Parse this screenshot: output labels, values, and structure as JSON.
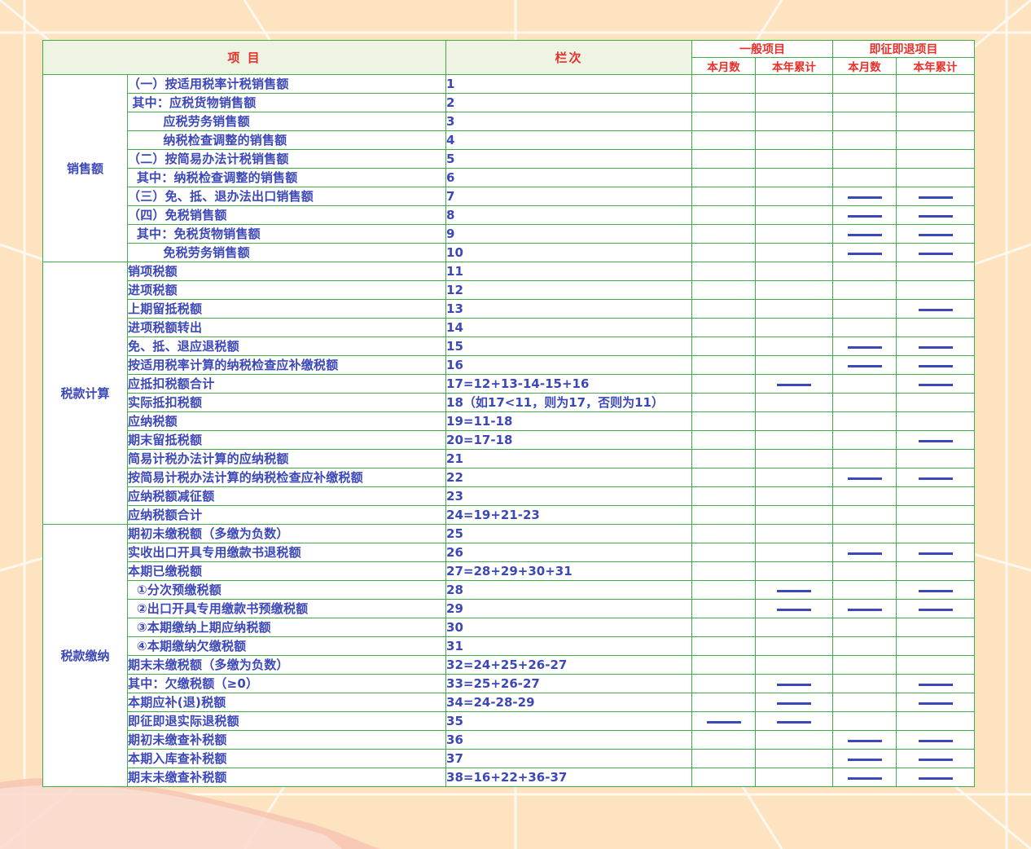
{
  "headers": {
    "item": "项 目",
    "seq": "栏次",
    "general": "一般项目",
    "refund": "即征即退项目",
    "month": "本月数",
    "year": "本年累计"
  },
  "colors": {
    "accent": "#e8302a",
    "text": "#3c48b8",
    "border": "#3fae48",
    "background": "#fde3c0"
  },
  "sections": [
    {
      "label": "销售额",
      "rows": [
        {
          "item": "（一）按适用税率计税销售额",
          "seq": "1",
          "dash": [
            false,
            false,
            false,
            false
          ]
        },
        {
          "item": " 其中：应税货物销售额",
          "seq": "2",
          "dash": [
            false,
            false,
            false,
            false
          ]
        },
        {
          "item": "        应税劳务销售额",
          "seq": "3",
          "dash": [
            false,
            false,
            false,
            false
          ]
        },
        {
          "item": "        纳税检查调整的销售额",
          "seq": "4",
          "dash": [
            false,
            false,
            false,
            false
          ]
        },
        {
          "item": "（二）按简易办法计税销售额",
          "seq": "5",
          "dash": [
            false,
            false,
            false,
            false
          ]
        },
        {
          "item": "  其中：纳税检查调整的销售额",
          "seq": "6",
          "dash": [
            false,
            false,
            false,
            false
          ]
        },
        {
          "item": "（三）免、抵、退办法出口销售额",
          "seq": "7",
          "dash": [
            false,
            false,
            true,
            true
          ]
        },
        {
          "item": "（四）免税销售额",
          "seq": "8",
          "dash": [
            false,
            false,
            true,
            true
          ]
        },
        {
          "item": "  其中：免税货物销售额",
          "seq": "9",
          "dash": [
            false,
            false,
            true,
            true
          ]
        },
        {
          "item": "        免税劳务销售额",
          "seq": "10",
          "dash": [
            false,
            false,
            true,
            true
          ]
        }
      ]
    },
    {
      "label": "税款计算",
      "rows": [
        {
          "item": "销项税额",
          "seq": "11",
          "dash": [
            false,
            false,
            false,
            false
          ]
        },
        {
          "item": "进项税额",
          "seq": "12",
          "dash": [
            false,
            false,
            false,
            false
          ]
        },
        {
          "item": "上期留抵税额",
          "seq": "13",
          "dash": [
            false,
            false,
            false,
            true
          ]
        },
        {
          "item": "进项税额转出",
          "seq": "14",
          "dash": [
            false,
            false,
            false,
            false
          ]
        },
        {
          "item": "免、抵、退应退税额",
          "seq": "15",
          "dash": [
            false,
            false,
            true,
            true
          ]
        },
        {
          "item": "按适用税率计算的纳税检查应补缴税额",
          "seq": "16",
          "dash": [
            false,
            false,
            true,
            true
          ]
        },
        {
          "item": "应抵扣税额合计",
          "seq": "17=12+13-14-15+16",
          "dash": [
            false,
            true,
            false,
            true
          ]
        },
        {
          "item": "实际抵扣税额",
          "seq": "18（如17<11，则为17，否则为11）",
          "dash": [
            false,
            false,
            false,
            false
          ]
        },
        {
          "item": "应纳税额",
          "seq": "19=11-18",
          "dash": [
            false,
            false,
            false,
            false
          ]
        },
        {
          "item": "期末留抵税额",
          "seq": "20=17-18",
          "dash": [
            false,
            false,
            false,
            true
          ]
        },
        {
          "item": "简易计税办法计算的应纳税额",
          "seq": "21",
          "dash": [
            false,
            false,
            false,
            false
          ]
        },
        {
          "item": "按简易计税办法计算的纳税检查应补缴税额",
          "seq": "22",
          "dash": [
            false,
            false,
            true,
            true
          ]
        },
        {
          "item": "应纳税额减征额",
          "seq": "23",
          "dash": [
            false,
            false,
            false,
            false
          ]
        },
        {
          "item": "应纳税额合计",
          "seq": "24=19+21-23",
          "dash": [
            false,
            false,
            false,
            false
          ]
        }
      ]
    },
    {
      "label": "税款缴纳",
      "rows": [
        {
          "item": "期初未缴税额（多缴为负数）",
          "seq": "25",
          "dash": [
            false,
            false,
            false,
            false
          ]
        },
        {
          "item": "实收出口开具专用缴款书退税额",
          "seq": "26",
          "dash": [
            false,
            false,
            true,
            true
          ]
        },
        {
          "item": "本期已缴税额",
          "seq": "27=28+29+30+31",
          "dash": [
            false,
            false,
            false,
            false
          ]
        },
        {
          "item": "  ①分次预缴税额",
          "seq": "28",
          "dash": [
            false,
            true,
            false,
            true
          ]
        },
        {
          "item": "  ②出口开具专用缴款书预缴税额",
          "seq": "29",
          "dash": [
            false,
            true,
            true,
            true
          ]
        },
        {
          "item": "  ③本期缴纳上期应纳税额",
          "seq": "30",
          "dash": [
            false,
            false,
            false,
            false
          ]
        },
        {
          "item": "  ④本期缴纳欠缴税额",
          "seq": "31",
          "dash": [
            false,
            false,
            false,
            false
          ]
        },
        {
          "item": "期末未缴税额（多缴为负数）",
          "seq": "32=24+25+26-27",
          "dash": [
            false,
            false,
            false,
            false
          ]
        },
        {
          "item": "其中：欠缴税额（≥0）",
          "seq": "33=25+26-27",
          "dash": [
            false,
            true,
            false,
            true
          ]
        },
        {
          "item": "本期应补(退)税额",
          "seq": "34=24-28-29",
          "dash": [
            false,
            true,
            false,
            true
          ]
        },
        {
          "item": "即征即退实际退税额",
          "seq": "35",
          "dash": [
            true,
            true,
            false,
            false
          ]
        },
        {
          "item": "期初未缴查补税额",
          "seq": "36",
          "dash": [
            false,
            false,
            true,
            true
          ]
        },
        {
          "item": "本期入库查补税额",
          "seq": "37",
          "dash": [
            false,
            false,
            true,
            true
          ]
        },
        {
          "item": "期末未缴查补税额",
          "seq": "38=16+22+36-37",
          "dash": [
            false,
            false,
            true,
            true
          ]
        }
      ]
    }
  ]
}
